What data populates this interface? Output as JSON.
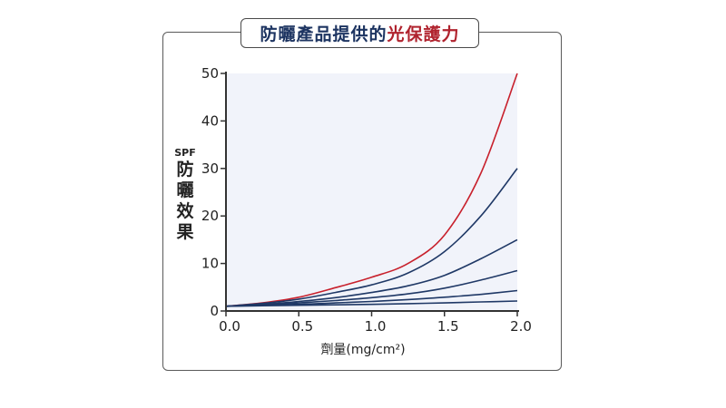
{
  "title": {
    "part1": "防曬產品提供的",
    "part2": "光保護力"
  },
  "colors": {
    "highlight_curve": "#c8202c",
    "other_curves": "#1f3866",
    "plot_background": "#f1f3fa",
    "title_dark": "#1d3461",
    "title_red": "#b0232e"
  },
  "chart_data": {
    "type": "line",
    "title": "防曬產品提供的光保護力",
    "xlabel": "劑量(mg/cm²)",
    "ylabel_unit": "SPF",
    "ylabel": "防曬效果",
    "xlim": [
      0,
      2.0
    ],
    "ylim": [
      0,
      50
    ],
    "x_ticks": [
      "0.0",
      "0.5",
      "1.0",
      "1.5",
      "2.0"
    ],
    "y_ticks": [
      "0",
      "10",
      "20",
      "30",
      "40",
      "50"
    ],
    "grid": false,
    "x": [
      0,
      0.25,
      0.5,
      0.75,
      1.0,
      1.25,
      1.5,
      1.75,
      2.0
    ],
    "series": [
      {
        "values": [
          1,
          1.7,
          2.9,
          4.9,
          7.1,
          10.0,
          16.0,
          29.0,
          50.0
        ],
        "color": "#c8202c"
      },
      {
        "values": [
          1,
          1.6,
          2.5,
          3.9,
          5.5,
          8.0,
          12.5,
          20.0,
          30.0
        ],
        "color": "#1f3866"
      },
      {
        "values": [
          1,
          1.4,
          2.0,
          2.8,
          3.9,
          5.3,
          7.5,
          11.0,
          15.0
        ],
        "color": "#1f3866"
      },
      {
        "values": [
          1,
          1.3,
          1.7,
          2.2,
          2.8,
          3.6,
          4.8,
          6.5,
          8.5
        ],
        "color": "#1f3866"
      },
      {
        "values": [
          1,
          1.2,
          1.4,
          1.7,
          2.0,
          2.4,
          2.9,
          3.5,
          4.3
        ],
        "color": "#1f3866"
      },
      {
        "values": [
          1,
          1.1,
          1.2,
          1.3,
          1.4,
          1.55,
          1.7,
          1.9,
          2.1
        ],
        "color": "#1f3866"
      }
    ]
  }
}
